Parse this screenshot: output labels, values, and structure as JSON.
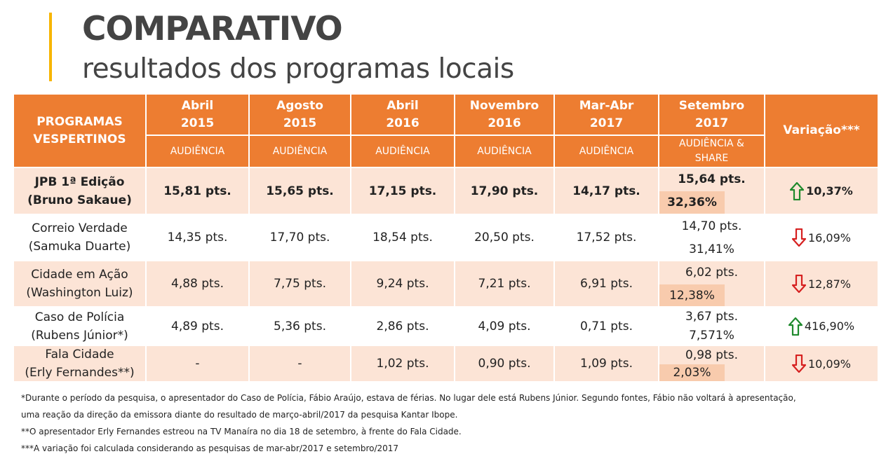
{
  "title": "COMPARATIVO",
  "subtitle": "resultados dos programas locais",
  "table": {
    "corner_label": "PROGRAMAS\nVESPERTINOS",
    "periods": [
      {
        "line1": "Abril",
        "line2": "2015",
        "sub": "AUDIÊNCIA"
      },
      {
        "line1": "Agosto",
        "line2": "2015",
        "sub": "AUDIÊNCIA"
      },
      {
        "line1": "Abril",
        "line2": "2016",
        "sub": "AUDIÊNCIA"
      },
      {
        "line1": "Novembro",
        "line2": "2016",
        "sub": "AUDIÊNCIA"
      },
      {
        "line1": "Mar-Abr",
        "line2": "2017",
        "sub": "AUDIÊNCIA"
      },
      {
        "line1": "Setembro",
        "line2": "2017",
        "sub": "AUDIÊNCIA &\nSHARE"
      }
    ],
    "variation_label": "Variação***",
    "rows": [
      {
        "program": "JPB 1ª Edição",
        "presenter": "(Bruno Sakaue)",
        "values": [
          "15,81 pts.",
          "15,65 pts.",
          "17,15 pts.",
          "17,90 pts.",
          "14,17 pts."
        ],
        "sept_audience": "15,64 pts.",
        "sept_share": "32,36%",
        "variation": "10,37%",
        "direction": "up",
        "bold": true
      },
      {
        "program": "Correio Verdade",
        "presenter": "(Samuka Duarte)",
        "values": [
          "14,35 pts.",
          "17,70 pts.",
          "18,54 pts.",
          "20,50 pts.",
          "17,52 pts."
        ],
        "sept_audience": "14,70 pts.",
        "sept_share": "31,41%",
        "variation": "16,09%",
        "direction": "down",
        "bold": false
      },
      {
        "program": "Cidade em Ação",
        "presenter": "(Washington Luiz)",
        "values": [
          "4,88 pts.",
          "7,75 pts.",
          "9,24 pts.",
          "7,21 pts.",
          "6,91 pts."
        ],
        "sept_audience": "6,02 pts.",
        "sept_share": "12,38%",
        "variation": "12,87%",
        "direction": "down",
        "bold": false
      },
      {
        "program": "Caso de Polícia",
        "presenter": "(Rubens Júnior*)",
        "values": [
          "4,89 pts.",
          "5,36 pts.",
          "2,86 pts.",
          "4,09 pts.",
          "0,71 pts."
        ],
        "sept_audience": "3,67 pts.",
        "sept_share": "7,571%",
        "variation": "416,90%",
        "direction": "up",
        "bold": false
      },
      {
        "program": "Fala Cidade",
        "presenter": "(Erly Fernandes**)",
        "values": [
          "-",
          "-",
          "1,02 pts.",
          "0,90 pts.",
          "1,09 pts."
        ],
        "sept_audience": "0,98 pts.",
        "sept_share": "2,03%",
        "variation": "10,09%",
        "direction": "down",
        "bold": false
      }
    ]
  },
  "notes": [
    " *Durante o período da pesquisa, o apresentador do Caso de Polícia, Fábio Araújo, estava de férias. No lugar dele está Rubens Júnior. Segundo fontes, Fábio não voltará à apresentação,",
    "uma reação da direção da emissora diante do resultado de março-abril/2017 da pesquisa Kantar Ibope.",
    "**O apresentador Erly Fernandes estreou na TV Manaíra no dia 18 de setembro, à frente do Fala Cidade.",
    "***A variação foi calculada considerando as pesquisas de mar-abr/2017 e setembro/2017"
  ],
  "colors": {
    "header": "#ed7d31",
    "row_pink": "#fce4d6",
    "share_box": "#f8cbad",
    "arrow_up": "#1f8a2d",
    "arrow_down": "#d62020",
    "accent_bar": "#f7b500"
  }
}
